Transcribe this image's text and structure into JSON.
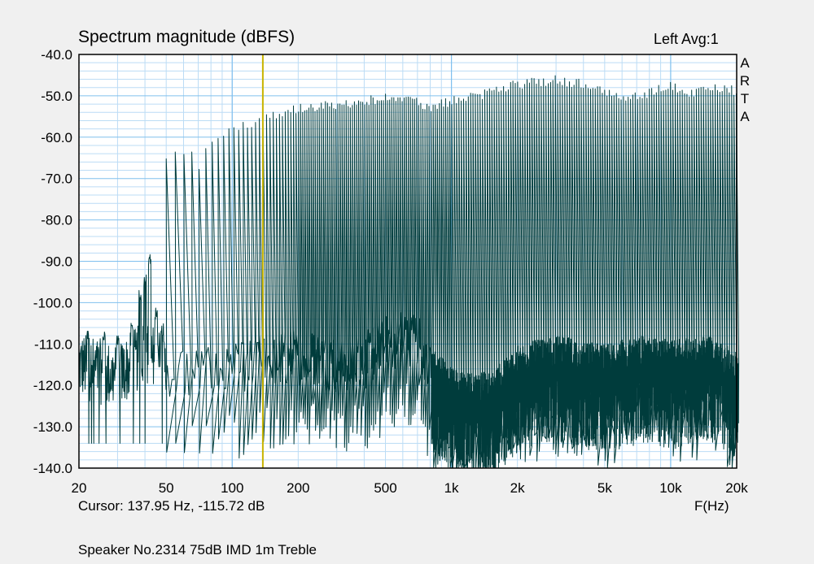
{
  "chart_data": {
    "type": "line",
    "title": "Spectrum magnitude (dBFS)",
    "channel_label": "Left  Avg:1",
    "brand_vertical": [
      "A",
      "R",
      "T",
      "A"
    ],
    "xlabel": "F(Hz)",
    "x_scale": "log",
    "xlim": [
      20,
      20000
    ],
    "ylim": [
      -140,
      -40
    ],
    "x_ticks": [
      {
        "value": 20,
        "label": "20"
      },
      {
        "value": 50,
        "label": "50"
      },
      {
        "value": 100,
        "label": "100"
      },
      {
        "value": 200,
        "label": "200"
      },
      {
        "value": 500,
        "label": "500"
      },
      {
        "value": 1000,
        "label": "1k"
      },
      {
        "value": 2000,
        "label": "2k"
      },
      {
        "value": 5000,
        "label": "5k"
      },
      {
        "value": 10000,
        "label": "10k"
      },
      {
        "value": 20000,
        "label": "20k"
      }
    ],
    "y_ticks": [
      {
        "value": -40,
        "label": "-40.0"
      },
      {
        "value": -50,
        "label": "-50.0"
      },
      {
        "value": -60,
        "label": "-60.0"
      },
      {
        "value": -70,
        "label": "-70.0"
      },
      {
        "value": -80,
        "label": "-80.0"
      },
      {
        "value": -90,
        "label": "-90.0"
      },
      {
        "value": -100,
        "label": "-100.0"
      },
      {
        "value": -110,
        "label": "-110.0"
      },
      {
        "value": -120,
        "label": "-120.0"
      },
      {
        "value": -130,
        "label": "-130.0"
      },
      {
        "value": -140,
        "label": "-140.0"
      }
    ],
    "grid": true,
    "cursor": {
      "frequency_hz": 137.95,
      "level_db": -115.72,
      "readout": "Cursor: 137.95 Hz, -115.72 dB"
    },
    "series": [
      {
        "peak_envelope": [
          [
            50,
            -64
          ],
          [
            55,
            -63
          ],
          [
            60,
            -62
          ],
          [
            65,
            -63
          ],
          [
            70,
            -66
          ],
          [
            75,
            -63
          ],
          [
            80,
            -61
          ],
          [
            90,
            -59
          ],
          [
            100,
            -57
          ],
          [
            120,
            -56
          ],
          [
            150,
            -54
          ],
          [
            200,
            -52
          ],
          [
            300,
            -51
          ],
          [
            400,
            -50
          ],
          [
            500,
            -49.5
          ],
          [
            600,
            -49
          ],
          [
            700,
            -50
          ],
          [
            800,
            -52
          ],
          [
            1000,
            -50
          ],
          [
            1500,
            -48
          ],
          [
            2000,
            -46
          ],
          [
            2500,
            -45.5
          ],
          [
            3000,
            -45
          ],
          [
            4000,
            -46
          ],
          [
            5000,
            -48
          ],
          [
            6000,
            -49
          ],
          [
            7000,
            -49
          ],
          [
            8000,
            -48
          ],
          [
            10000,
            -46
          ],
          [
            12000,
            -48
          ],
          [
            15000,
            -47
          ],
          [
            18000,
            -47
          ],
          [
            20000,
            -48
          ]
        ],
        "noise_floor": [
          [
            20,
            -115
          ],
          [
            30,
            -118
          ],
          [
            40,
            -112
          ],
          [
            50,
            -116
          ],
          [
            80,
            -118
          ],
          [
            100,
            -117
          ],
          [
            150,
            -114
          ],
          [
            200,
            -113
          ],
          [
            300,
            -115
          ],
          [
            400,
            -114
          ],
          [
            500,
            -110
          ],
          [
            600,
            -108
          ],
          [
            700,
            -109
          ],
          [
            800,
            -118
          ],
          [
            1000,
            -124
          ],
          [
            1500,
            -125
          ],
          [
            2000,
            -118
          ],
          [
            3000,
            -116
          ],
          [
            5000,
            -118
          ],
          [
            7000,
            -116
          ],
          [
            10000,
            -117
          ],
          [
            15000,
            -116
          ],
          [
            20000,
            -120
          ]
        ],
        "low_frequency_peaks": [
          [
            22,
            -109
          ],
          [
            26,
            -110
          ],
          [
            30,
            -111
          ],
          [
            35,
            -107
          ],
          [
            38,
            -100
          ],
          [
            40,
            -96
          ],
          [
            42,
            -91
          ],
          [
            45,
            -104
          ],
          [
            48,
            -108
          ]
        ]
      }
    ],
    "colors": {
      "trace": "#003c3c",
      "grid": "#80c0ee",
      "minor_grid": "#bcdcf5",
      "cursor": "#c8b400",
      "plot_bg": "#ffffff",
      "window_bg": "#f0f0f0"
    }
  },
  "caption": "Speaker No.2314 75dB IMD 1m Treble"
}
